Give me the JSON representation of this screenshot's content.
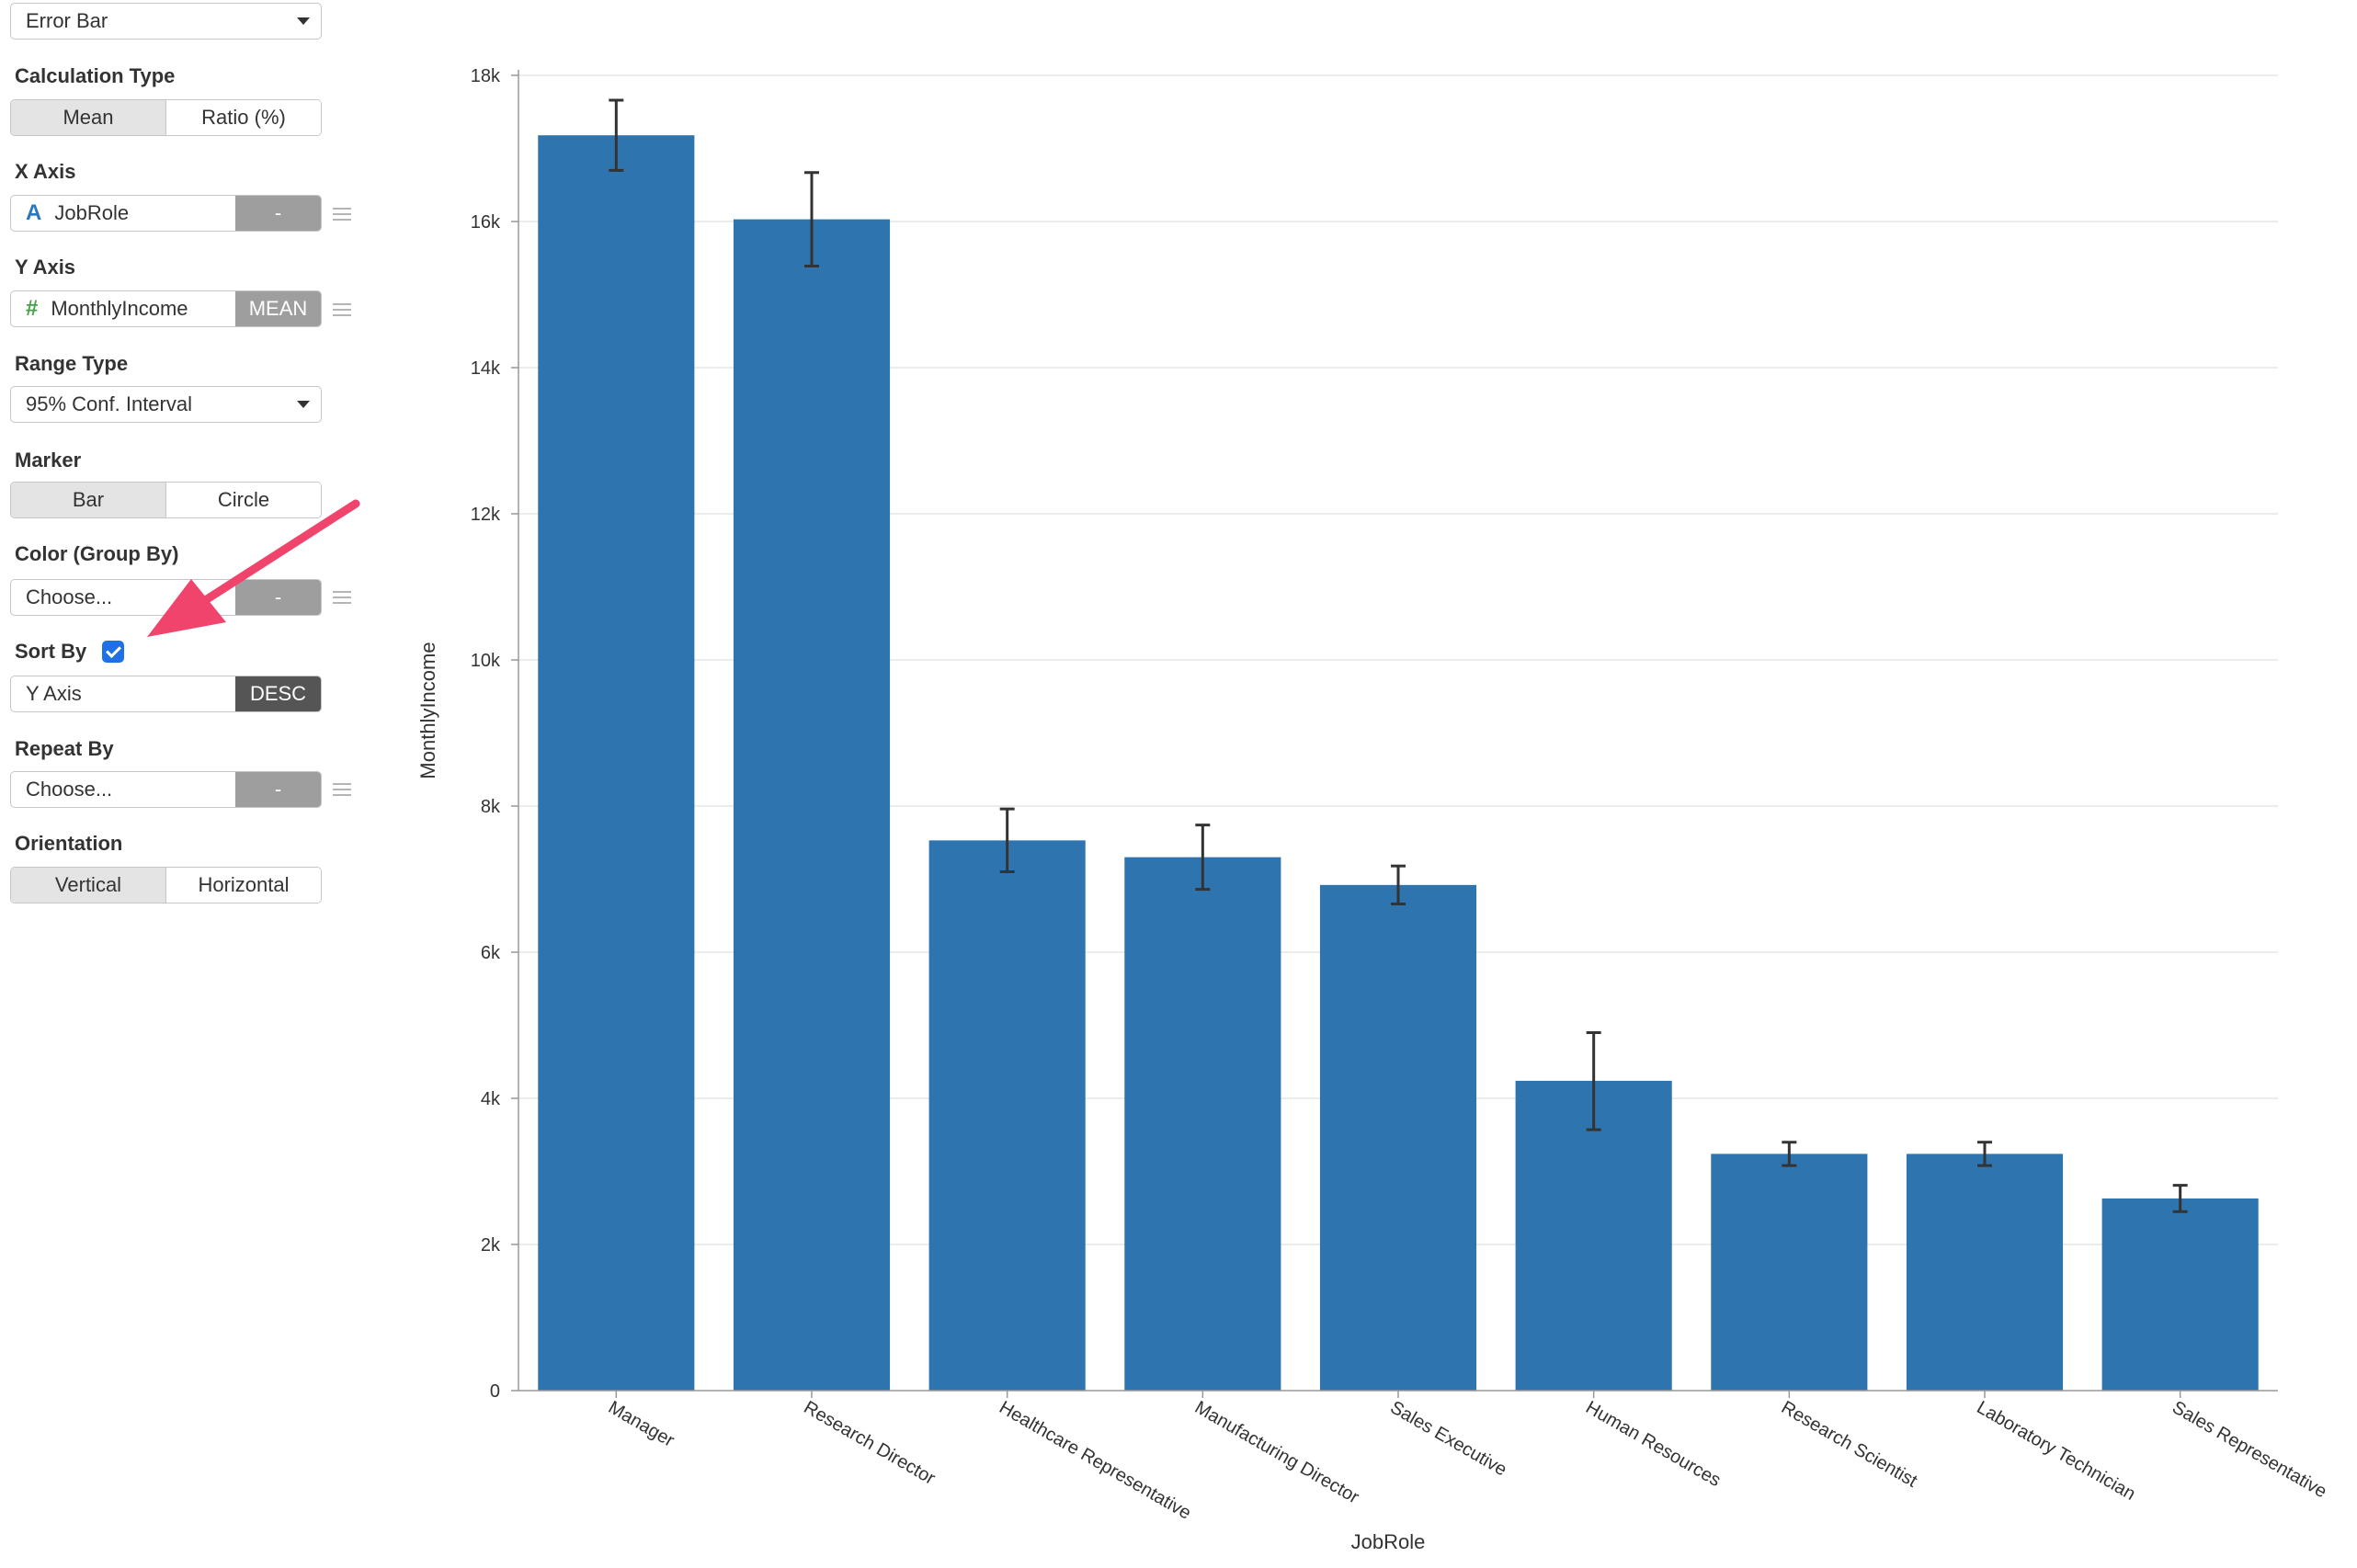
{
  "panel": {
    "chart_type": "Error Bar",
    "calculation_type": {
      "label": "Calculation Type",
      "options": [
        "Mean",
        "Ratio (%)"
      ],
      "selected": "Mean"
    },
    "x_axis": {
      "label": "X Axis",
      "field": "JobRole",
      "type_icon": "A",
      "aggregate": "-"
    },
    "y_axis": {
      "label": "Y Axis",
      "field": "MonthlyIncome",
      "type_icon": "#",
      "aggregate": "MEAN"
    },
    "range_type": {
      "label": "Range Type",
      "value": "95% Conf. Interval"
    },
    "marker": {
      "label": "Marker",
      "options": [
        "Bar",
        "Circle"
      ],
      "selected": "Bar"
    },
    "color_group_by": {
      "label": "Color (Group By)",
      "value": "Choose...",
      "aggregate": "-"
    },
    "sort_by": {
      "label": "Sort By",
      "checked": true,
      "value": "Y Axis",
      "order": "DESC"
    },
    "repeat_by": {
      "label": "Repeat By",
      "value": "Choose...",
      "aggregate": "-"
    },
    "orientation": {
      "label": "Orientation",
      "options": [
        "Vertical",
        "Horizontal"
      ],
      "selected": "Vertical"
    }
  },
  "colors": {
    "bar": "#2e75b0",
    "error_bar": "#333333",
    "arrow": "#f0446c",
    "checkbox": "#1f6fe5"
  },
  "chart_data": {
    "type": "bar",
    "title": "",
    "xlabel": "JobRole",
    "ylabel": "MonthlyIncome",
    "ylim": [
      0,
      18000
    ],
    "y_ticks": [
      0,
      2000,
      4000,
      6000,
      8000,
      10000,
      12000,
      14000,
      16000,
      18000
    ],
    "y_tick_labels": [
      "0",
      "2k",
      "4k",
      "6k",
      "8k",
      "10k",
      "12k",
      "14k",
      "16k",
      "18k"
    ],
    "grid": "horizontal",
    "categories": [
      "Manager",
      "Research Director",
      "Healthcare Representative",
      "Manufacturing Director",
      "Sales Executive",
      "Human Resources",
      "Research Scientist",
      "Laboratory Technician",
      "Sales Representative"
    ],
    "values": [
      17180,
      16030,
      7530,
      7300,
      6920,
      4240,
      3240,
      3240,
      2630
    ],
    "error_low": [
      16700,
      15390,
      7100,
      6860,
      6660,
      3570,
      3080,
      3080,
      2450
    ],
    "error_high": [
      17660,
      16670,
      7960,
      7740,
      7180,
      4900,
      3400,
      3400,
      2810
    ]
  }
}
